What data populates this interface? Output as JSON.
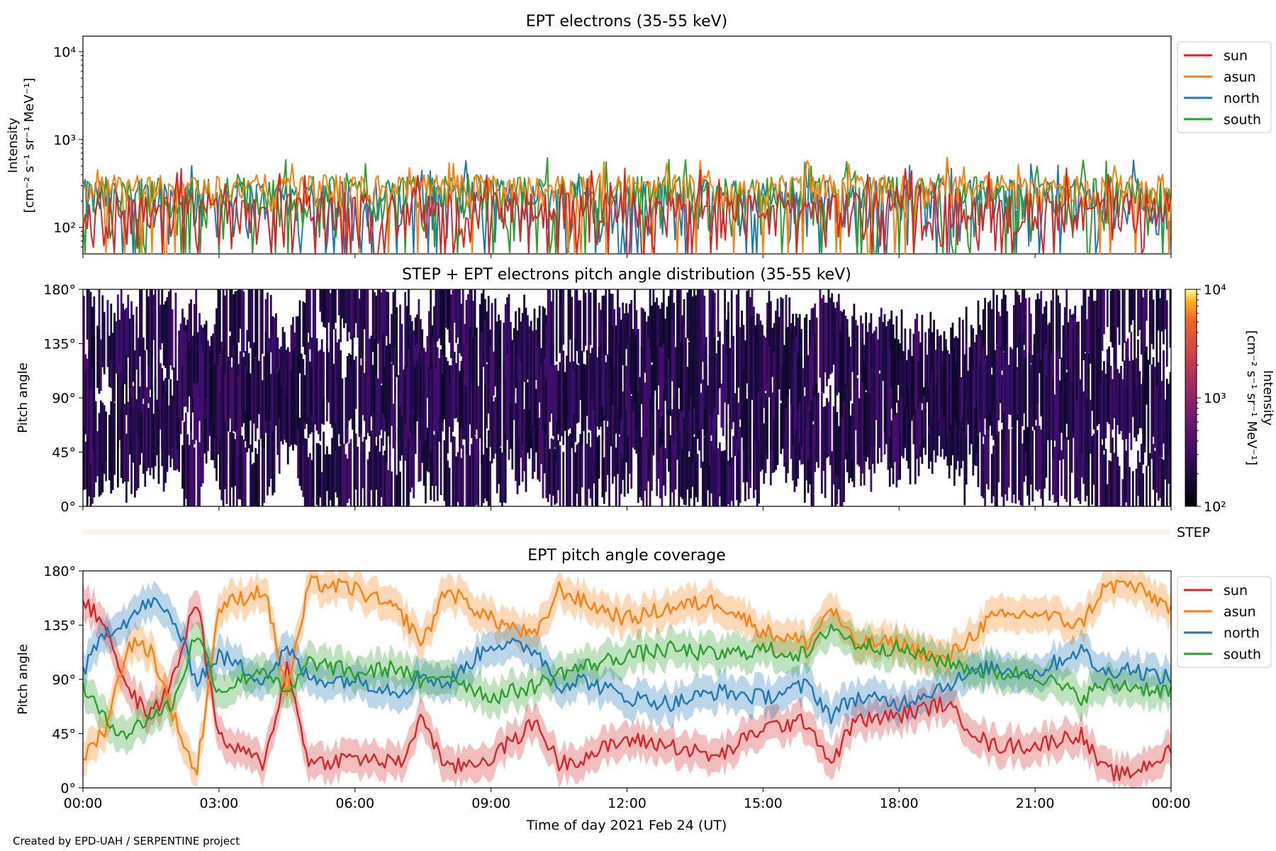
{
  "footer": {
    "credit": "Created by EPD-UAH / SERPENTINE project"
  },
  "chart_data": [
    {
      "type": "line",
      "title": "EPT electrons (35-55 keV)",
      "xlabel": "",
      "ylabel": "Intensity",
      "ylabel_units": "[cm⁻² s⁻¹ sr⁻¹ MeV⁻¹]",
      "yscale": "log",
      "ylim": [
        50,
        15000
      ],
      "ytick_labels": [
        "10²",
        "10³",
        "10⁴"
      ],
      "ytick_values": [
        100,
        1000,
        10000
      ],
      "xlim_hours": [
        0,
        24
      ],
      "legend": {
        "placement": "outside-right",
        "entries": [
          "sun",
          "asun",
          "north",
          "south"
        ]
      },
      "series": [
        {
          "name": "sun",
          "color": "#d62728",
          "typical_range": [
            50,
            250
          ],
          "peak": 480
        },
        {
          "name": "asun",
          "color": "#ff7f0e",
          "typical_range": [
            150,
            400
          ],
          "peak": 650
        },
        {
          "name": "north",
          "color": "#1f77b4",
          "typical_range": [
            60,
            350
          ],
          "peak": 600
        },
        {
          "name": "south",
          "color": "#2ca02c",
          "typical_range": [
            60,
            380
          ],
          "peak": 620
        }
      ]
    },
    {
      "type": "heatmap",
      "title": "STEP + EPT electrons pitch angle distribution (35-55 keV)",
      "ylabel": "Pitch angle",
      "ylim": [
        0,
        180
      ],
      "ytick_labels": [
        "0°",
        "45°",
        "90°",
        "135°",
        "180°"
      ],
      "ytick_values": [
        0,
        45,
        90,
        135,
        180
      ],
      "colorbar": {
        "label": "Intensity",
        "units": "[cm⁻² s⁻¹ sr⁻¹ MeV⁻¹]",
        "scale": "log",
        "range": [
          100,
          10000
        ],
        "tick_labels": [
          "10²",
          "10³",
          "10⁴"
        ],
        "colormap": "inferno"
      },
      "dominant_intensity": [
        100,
        300
      ]
    },
    {
      "type": "table",
      "label": "STEP",
      "note_color": "#fdf1ea"
    },
    {
      "type": "line",
      "title": "EPT pitch angle coverage",
      "xlabel": "Time of day 2021 Feb 24 (UT)",
      "ylabel": "Pitch angle",
      "ylim": [
        0,
        180
      ],
      "ytick_labels": [
        "0°",
        "45°",
        "90°",
        "135°",
        "180°"
      ],
      "ytick_values": [
        0,
        45,
        90,
        135,
        180
      ],
      "xtick_labels": [
        "00:00",
        "03:00",
        "06:00",
        "09:00",
        "12:00",
        "15:00",
        "18:00",
        "21:00",
        "00:00"
      ],
      "xtick_hours": [
        0,
        3,
        6,
        9,
        12,
        15,
        18,
        21,
        24
      ],
      "legend": {
        "placement": "outside-right",
        "entries": [
          "sun",
          "asun",
          "north",
          "south"
        ]
      },
      "series": [
        {
          "name": "sun",
          "color": "#d62728",
          "x_hours": [
            0,
            0.5,
            1,
            1.5,
            2,
            2.5,
            3,
            4,
            4.5,
            5,
            6,
            7,
            7.5,
            8,
            9,
            10,
            10.5,
            11,
            12,
            13,
            14,
            15,
            16,
            16.5,
            17,
            18,
            19,
            20,
            21,
            22,
            22.5,
            23,
            24
          ],
          "pitch": [
            155,
            135,
            80,
            60,
            90,
            160,
            40,
            20,
            100,
            20,
            25,
            20,
            60,
            15,
            25,
            55,
            20,
            25,
            40,
            35,
            25,
            50,
            55,
            20,
            55,
            60,
            70,
            35,
            35,
            45,
            15,
            10,
            30
          ]
        },
        {
          "name": "asun",
          "color": "#ff7f0e",
          "x_hours": [
            0,
            0.5,
            1,
            1.5,
            2,
            2.5,
            3,
            4,
            4.5,
            5,
            6,
            7,
            7.5,
            8,
            9,
            10,
            10.5,
            11,
            12,
            13,
            14,
            15,
            16,
            16.5,
            17,
            18,
            19,
            20,
            21,
            22,
            22.5,
            23,
            24
          ],
          "pitch": [
            25,
            50,
            120,
            115,
            60,
            10,
            150,
            165,
            80,
            170,
            165,
            145,
            120,
            165,
            140,
            125,
            165,
            155,
            140,
            150,
            155,
            130,
            120,
            150,
            120,
            120,
            105,
            140,
            145,
            135,
            165,
            170,
            150
          ]
        },
        {
          "name": "north",
          "color": "#1f77b4",
          "x_hours": [
            0,
            0.5,
            1,
            1.5,
            2,
            2.5,
            3,
            4,
            4.5,
            5,
            6,
            7,
            7.5,
            8,
            9,
            10,
            10.5,
            11,
            12,
            13,
            14,
            15,
            16,
            16.5,
            17,
            18,
            19,
            20,
            21,
            22,
            22.5,
            23,
            24
          ],
          "pitch": [
            95,
            130,
            140,
            155,
            140,
            90,
            110,
            90,
            115,
            90,
            90,
            80,
            95,
            85,
            120,
            115,
            85,
            90,
            75,
            70,
            80,
            75,
            85,
            60,
            75,
            70,
            85,
            100,
            95,
            115,
            95,
            100,
            90
          ]
        },
        {
          "name": "south",
          "color": "#2ca02c",
          "x_hours": [
            0,
            0.5,
            1,
            1.5,
            2,
            2.5,
            3,
            4,
            4.5,
            5,
            6,
            7,
            7.5,
            8,
            9,
            10,
            10.5,
            11,
            12,
            13,
            14,
            15,
            16,
            16.5,
            17,
            18,
            19,
            20,
            21,
            22,
            22.5,
            23,
            24
          ],
          "pitch": [
            85,
            55,
            45,
            60,
            70,
            130,
            80,
            100,
            75,
            105,
            95,
            100,
            85,
            95,
            75,
            85,
            95,
            100,
            110,
            115,
            110,
            115,
            110,
            135,
            120,
            115,
            105,
            95,
            95,
            75,
            85,
            85,
            80
          ]
        }
      ]
    }
  ]
}
